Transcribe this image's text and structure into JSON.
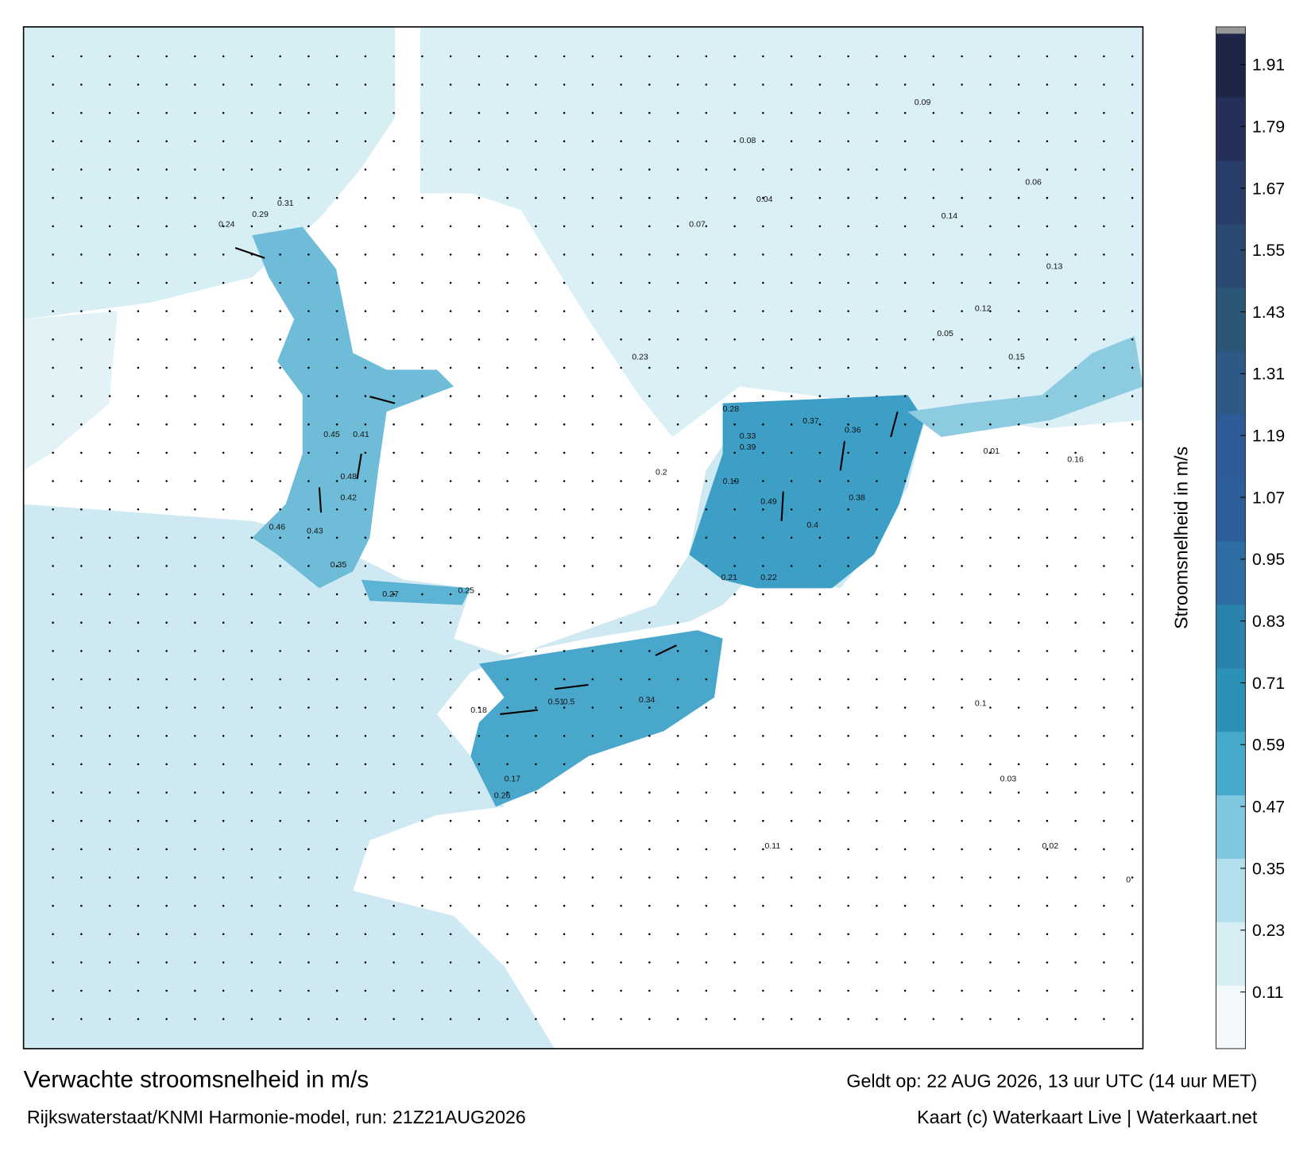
{
  "map": {
    "title": "Verwachte stroomsnelheid in m/s",
    "source": "Rijkswaterstaat/KNMI Harmonie-model, run: 21Z21AUG2026",
    "valid": "Geldt op: 22 AUG 2026, 13 uur UTC (14 uur MET)",
    "credit": "Kaart (c) Waterkaart Live | Waterkaart.net",
    "colorbar": {
      "label": "Stroomsnelheid in m/s",
      "lim": [
        0,
        1.97
      ],
      "ticks": [
        0.11,
        0.23,
        0.35,
        0.47,
        0.59,
        0.71,
        0.83,
        0.95,
        1.07,
        1.19,
        1.31,
        1.43,
        1.55,
        1.67,
        1.79,
        1.91
      ],
      "colors": [
        "#f3f9fb",
        "#d6edf4",
        "#b3deeb",
        "#7fc7de",
        "#45a9cc",
        "#2b91b8",
        "#2a83ae",
        "#2c6ea3",
        "#2d5d9a",
        "#2e5a98",
        "#2c5985",
        "#2c5676",
        "#2a4a74",
        "#283d6a",
        "#24305a",
        "#1d2646"
      ]
    },
    "speed_labels": [
      0.5,
      0.51,
      0.48,
      0.49,
      0.45,
      0.46,
      0.43,
      0.42,
      0.41,
      0.4,
      0.39,
      0.38,
      0.37,
      0.36,
      0.35,
      0.34,
      0.33,
      0.31,
      0.29,
      0.28,
      0.27,
      0.26,
      0.25,
      0.24,
      0.23,
      0.22,
      0.21,
      0.2,
      0.19,
      0.18,
      0.17,
      0.16,
      0.15,
      0.14,
      0.13,
      0.12,
      0.11,
      0.1,
      0.09,
      0.08,
      0.07,
      0.06,
      0.05,
      0.04,
      0.03,
      0.02,
      0.01,
      0
    ]
  }
}
